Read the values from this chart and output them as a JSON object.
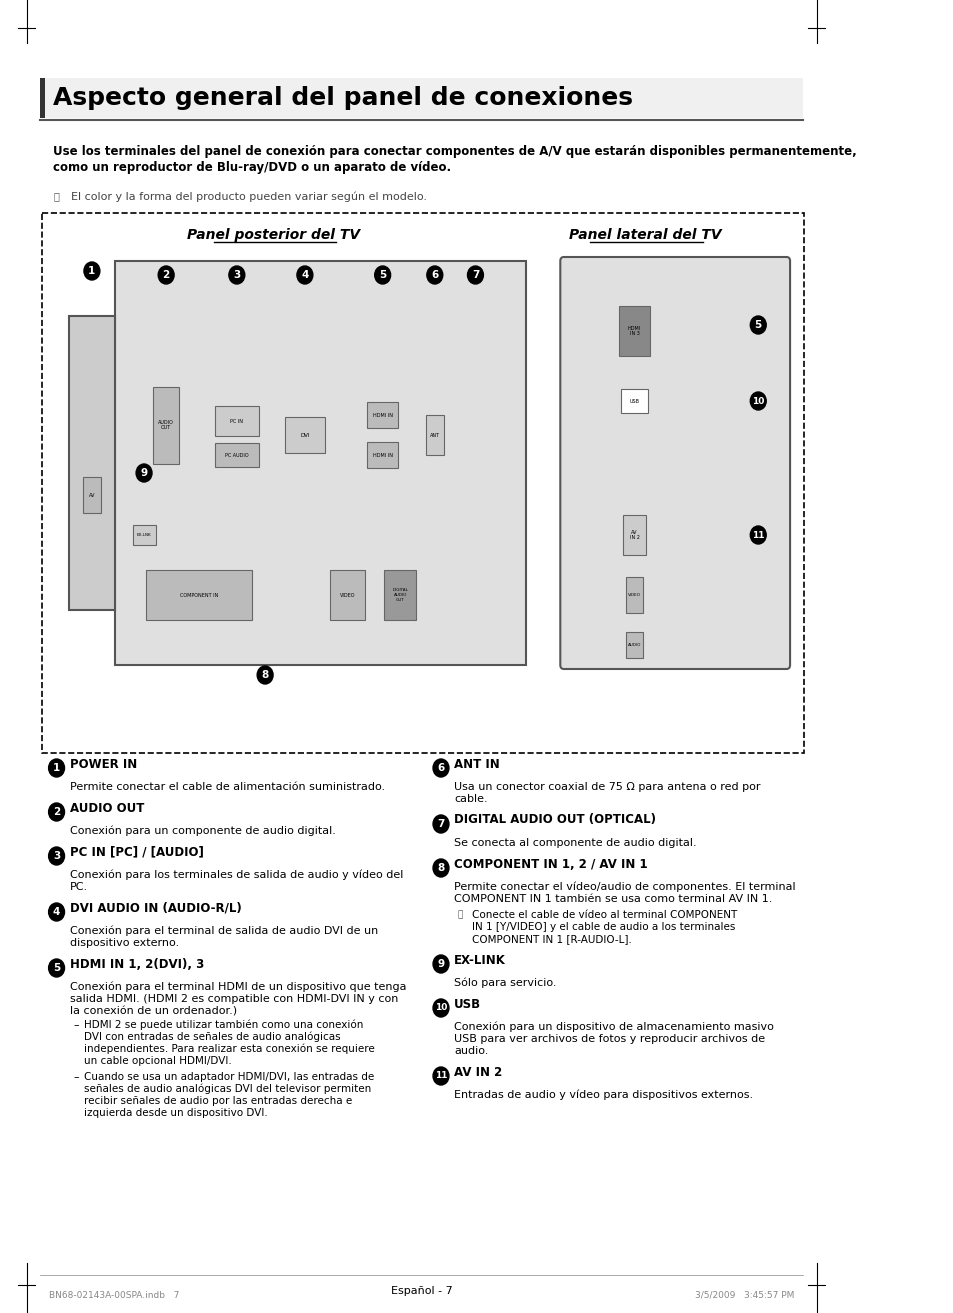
{
  "bg_color": "#ffffff",
  "title": "Aspecto general del panel de conexiones",
  "intro_bold": "Use los terminales del panel de conexión para conectar componentes de A/V que estarán disponibles permanentemente,\ncomo un reproductor de Blu-ray/DVD o un aparato de vídeo.",
  "note_text": "El color y la forma del producto pueden variar según el modelo.",
  "panel_posterior_label": "Panel posterior del TV",
  "panel_lateral_label": "Panel lateral del TV",
  "footer_text": "Español - 7",
  "footer_file": "BN68-02143A-00SPA.indb   7",
  "footer_date": "3/5/2009   3:45:57 PM",
  "items_left": [
    {
      "num": "1",
      "title": "POWER IN",
      "body": "Permite conectar el cable de alimentación suministrado."
    },
    {
      "num": "2",
      "title": "AUDIO OUT",
      "body": "Conexión para un componente de audio digital."
    },
    {
      "num": "3",
      "title": "PC IN [PC] / [AUDIO]",
      "body": "Conexión para los terminales de salida de audio y vídeo del\nPC."
    },
    {
      "num": "4",
      "title": "DVI AUDIO IN (AUDIO-R/L)",
      "body": "Conexión para el terminal de salida de audio DVI de un\ndispositivo externo."
    },
    {
      "num": "5",
      "title": "HDMI IN 1, 2(DVI), 3",
      "body": "Conexión para el terminal HDMI de un dispositivo que tenga\nsalida HDMI. (HDMI 2 es compatible con HDMI-DVI IN y con\nla conexión de un ordenador.)",
      "bullets": [
        "HDMI 2 se puede utilizar también como una conexión\nDVI con entradas de señales de audio analógicas\nindependientes. Para realizar esta conexión se requiere\nun cable opcional HDMI/DVI.",
        "Cuando se usa un adaptador HDMI/DVI, las entradas de\nseñales de audio analógicas DVI del televisor permiten\nrecibir señales de audio por las entradas derecha e\nizquierda desde un dispositivo DVI."
      ]
    }
  ],
  "items_right": [
    {
      "num": "6",
      "title": "ANT IN",
      "body": "Usa un conector coaxial de 75 Ω para antena o red por\ncable."
    },
    {
      "num": "7",
      "title": "DIGITAL AUDIO OUT (OPTICAL)",
      "body": "Se conecta al componente de audio digital."
    },
    {
      "num": "8",
      "title": "COMPONENT IN 1, 2 / AV IN 1",
      "body": "Permite conectar el vídeo/audio de componentes. El terminal\nCOMPONENT IN 1 también se usa como terminal AV IN 1.",
      "note": "Conecte el cable de vídeo al terminal COMPONENT\nIN 1 [Y/VIDEO] y el cable de audio a los terminales\nCOMPONENT IN 1 [R-AUDIO-L]."
    },
    {
      "num": "9",
      "title": "EX-LINK",
      "body": "Sólo para servicio."
    },
    {
      "num": "10",
      "title": "USB",
      "body": "Conexión para un dispositivo de almacenamiento masivo\nUSB para ver archivos de fotos y reproducir archivos de\naudio."
    },
    {
      "num": "11",
      "title": "AV IN 2",
      "body": "Entradas de audio y vídeo para dispositivos externos."
    }
  ]
}
